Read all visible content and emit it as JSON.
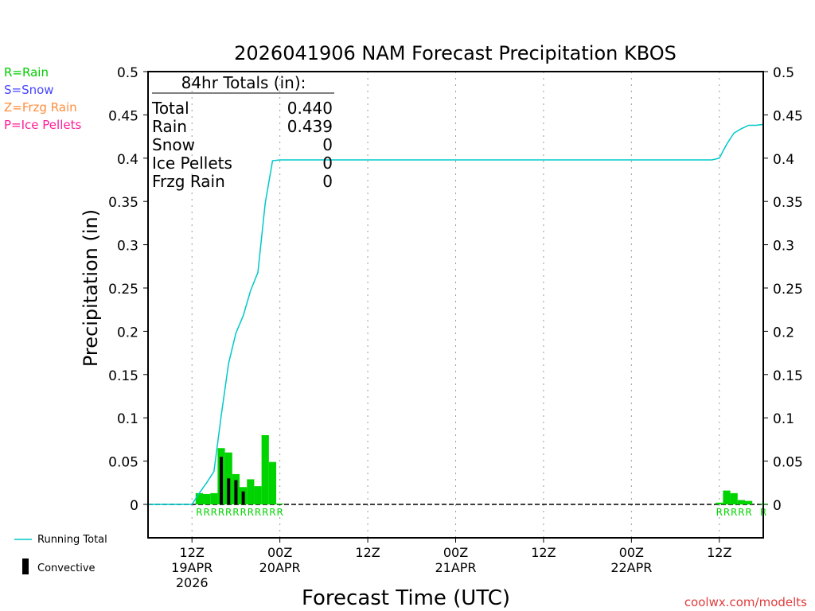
{
  "chart_data": {
    "type": "bar",
    "title": "2026041906 NAM Forecast Precipitation KBOS",
    "xlabel": "Forecast Time (UTC)",
    "ylabel": "Precipitation  (in)",
    "ylim": [
      -0.04,
      0.5
    ],
    "yticks": [
      "0",
      "0.05",
      "0.1",
      "0.15",
      "0.2",
      "0.25",
      "0.3",
      "0.35",
      "0.4",
      "0.45",
      "0.5"
    ],
    "ytick_values": [
      0,
      0.05,
      0.1,
      0.15,
      0.2,
      0.25,
      0.3,
      0.35,
      0.4,
      0.45,
      0.5
    ],
    "x_range_hours": [
      0,
      84
    ],
    "x_unit": "hours after 06Z 19APR 2026",
    "xticks": [
      {
        "hour": 6,
        "lines": [
          "12Z",
          "19APR",
          "2026"
        ]
      },
      {
        "hour": 18,
        "lines": [
          "00Z",
          "20APR"
        ]
      },
      {
        "hour": 30,
        "lines": [
          "12Z"
        ]
      },
      {
        "hour": 42,
        "lines": [
          "00Z",
          "21APR"
        ]
      },
      {
        "hour": 54,
        "lines": [
          "12Z"
        ]
      },
      {
        "hour": 66,
        "lines": [
          "00Z",
          "22APR"
        ]
      },
      {
        "hour": 78,
        "lines": [
          "12Z"
        ]
      }
    ],
    "series": [
      {
        "name": "Hourly Rain",
        "color": "#00d400",
        "hours": [
          7,
          8,
          9,
          10,
          11,
          12,
          13,
          14,
          15,
          16,
          17,
          18,
          78,
          79,
          80,
          81,
          82,
          84
        ],
        "values": [
          0.013,
          0.012,
          0.013,
          0.065,
          0.06,
          0.035,
          0.02,
          0.029,
          0.021,
          0.08,
          0.049,
          0.001,
          0.002,
          0.016,
          0.013,
          0.005,
          0.004,
          0.001
        ],
        "ptype": [
          "R",
          "R",
          "R",
          "R",
          "R",
          "R",
          "R",
          "R",
          "R",
          "R",
          "R",
          "R",
          "R",
          "R",
          "R",
          "R",
          "R",
          "R"
        ]
      },
      {
        "name": "Convective",
        "color": "#000000",
        "hours": [
          10,
          11,
          12,
          13
        ],
        "values": [
          0.055,
          0.03,
          0.028,
          0.015
        ]
      },
      {
        "name": "Running Total",
        "color": "#00c8c8",
        "type": "line"
      }
    ],
    "totals": {
      "heading": "84hr Totals (in):",
      "rows": [
        {
          "label": "Total",
          "value": "0.440"
        },
        {
          "label": "Rain",
          "value": "0.439"
        },
        {
          "label": "Snow",
          "value": "0"
        },
        {
          "label": "Ice Pellets",
          "value": "0"
        },
        {
          "label": "Frzg Rain",
          "value": "0"
        }
      ]
    },
    "ptype_legend": [
      {
        "text": "R=Rain",
        "color": "#00cc00"
      },
      {
        "text": "S=Snow",
        "color": "#4646ff"
      },
      {
        "text": "Z=Frzg Rain",
        "color": "#ff8c3c"
      },
      {
        "text": "P=Ice Pellets",
        "color": "#ff1e96"
      }
    ],
    "legend": [
      {
        "text": "Running Total",
        "color": "#00c8c8"
      },
      {
        "text": "Convective",
        "color": "#000000"
      }
    ],
    "credit": "coolwx.com/modelts"
  }
}
